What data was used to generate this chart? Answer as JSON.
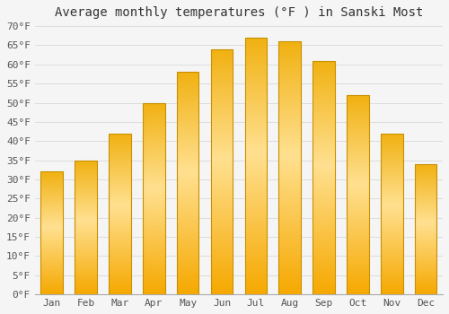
{
  "title": "Average monthly temperatures (°F ) in Sanski Most",
  "months": [
    "Jan",
    "Feb",
    "Mar",
    "Apr",
    "May",
    "Jun",
    "Jul",
    "Aug",
    "Sep",
    "Oct",
    "Nov",
    "Dec"
  ],
  "values": [
    32,
    35,
    42,
    50,
    58,
    64,
    67,
    66,
    61,
    52,
    42,
    34
  ],
  "bar_color_bottom": "#F5A800",
  "bar_color_mid": "#FFD050",
  "bar_color_top": "#FFE090",
  "bar_edge_color": "#C89000",
  "ylim": [
    0,
    70
  ],
  "ytick_step": 5,
  "background_color": "#F5F5F5",
  "plot_bg_color": "#F5F5F5",
  "grid_color": "#DDDDDD",
  "title_fontsize": 10,
  "tick_fontsize": 8,
  "font_family": "monospace"
}
